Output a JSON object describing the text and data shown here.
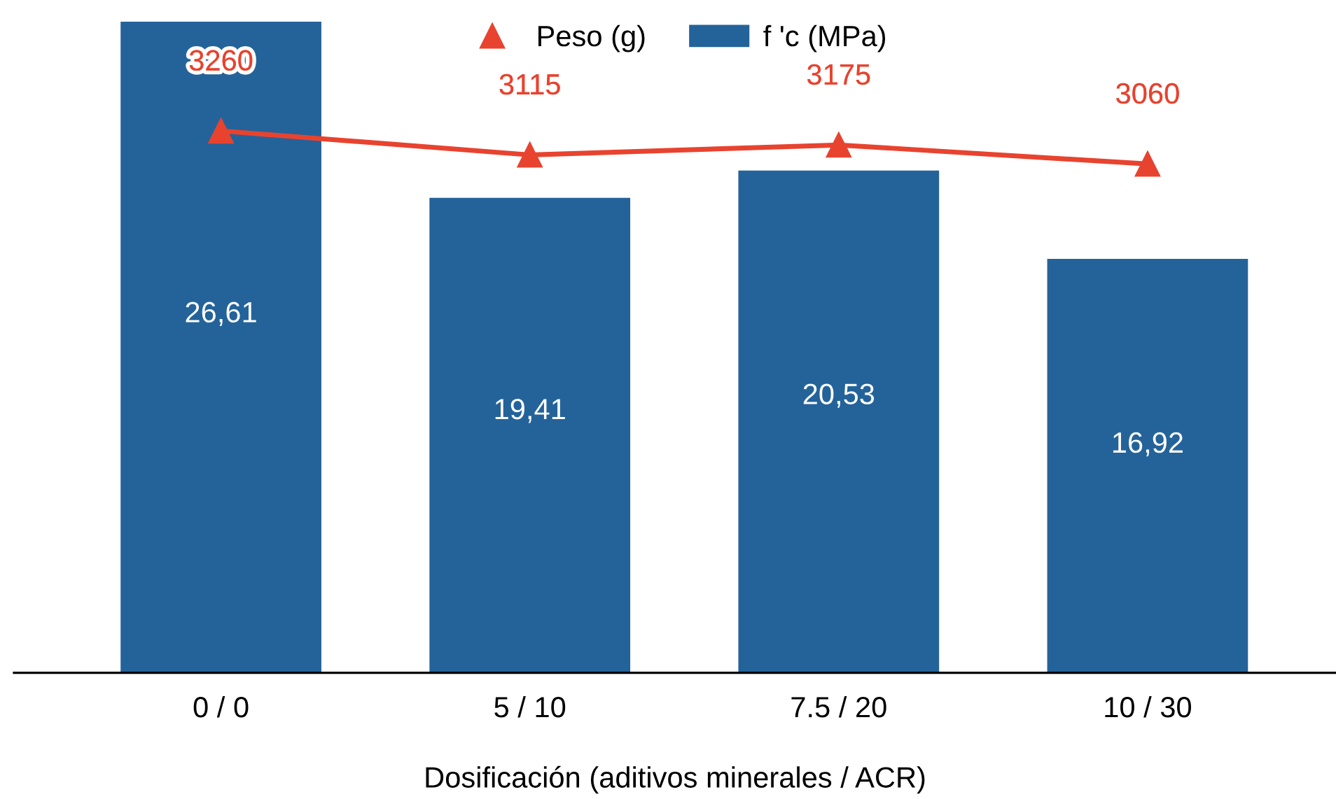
{
  "chart_data": {
    "type": "bar",
    "xlabel": "Dosificación (aditivos minerales / ACR)",
    "categories": [
      "0 / 0",
      "5 / 10",
      "7.5 / 20",
      "10 / 30"
    ],
    "series": [
      {
        "name": "f 'c (MPa)",
        "color": "#24639a",
        "values": [
          26.61,
          19.41,
          20.53,
          16.92
        ],
        "value_labels": [
          "26,61",
          "19,41",
          "20,53",
          "16,92"
        ]
      },
      {
        "name": "Peso (g)",
        "type": "line",
        "axis": "y2",
        "color": "#e8432f",
        "marker": "triangle",
        "values": [
          3260,
          3115,
          3175,
          3060
        ],
        "value_labels": [
          "3260",
          "3115",
          "3175",
          "3060"
        ]
      }
    ],
    "tick_labels": "x",
    "legend": "top",
    "grid": false
  }
}
